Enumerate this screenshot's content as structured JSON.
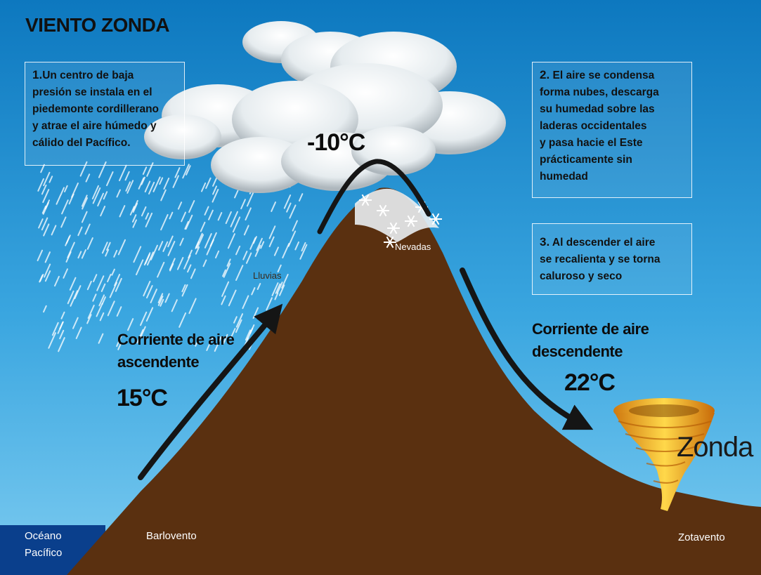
{
  "title": "VIENTO ZONDA",
  "boxes": [
    {
      "number": "1.",
      "text": "Un centro de baja\npresión se instala en el\npiedemonte cordillerano\ny atrae el aire húmedo y\ncálido del Pacífico."
    },
    {
      "number": "2.",
      "text": " El aire se condensa\nforma nubes, descarga\nsu humedad sobre las\nladeras occidentales\ny pasa hacie el Este\nprácticamente sin\nhumedad"
    },
    {
      "number": "3.",
      "text": " Al descender el aire\nse recalienta y se torna\ncaluroso y seco"
    }
  ],
  "labels": {
    "ascending": "Corriente de aire\nascendente",
    "descending": "Corriente de aire\ndescendente",
    "temp_left": "15°C",
    "temp_peak": "-10°C",
    "temp_right": "22°C",
    "rain": "Lluvias",
    "snow": "Nevadas",
    "zonda": "Zonda",
    "ocean": "Océano\nPacífico",
    "windward": "Barlovento",
    "leeward": "Zotavento"
  },
  "colors": {
    "sky_top": "#0f7fc4",
    "sky_bottom": "#6fc3ee",
    "mountain": "#5a3010",
    "ocean": "#0a3f8c",
    "arrow": "#151515",
    "tornado": "#e8a020"
  }
}
